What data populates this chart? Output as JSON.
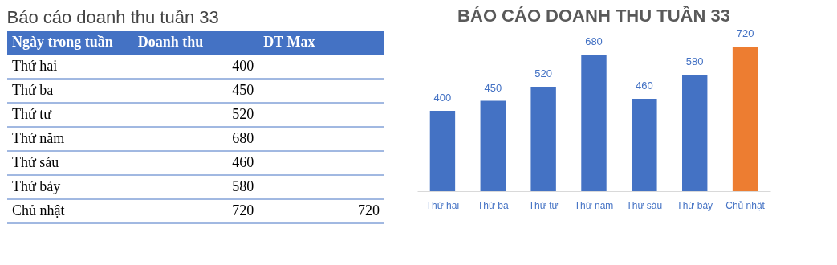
{
  "chart_data": [
    {
      "type": "other",
      "title": "Báo cáo doanh thu tuần 33",
      "annotations": [
        "Ngày trong tuần",
        "Doanh thu",
        "DT Max",
        "Thứ hai",
        "400",
        "Thứ ba",
        "450",
        "Thứ tư",
        "520",
        "Thứ năm",
        "680",
        "Thứ sáu",
        "460",
        "Thứ bảy",
        "580",
        "Chủ nhật",
        "720",
        "720"
      ]
    },
    {
      "type": "bar",
      "title": "BÁO CÁO DOANH THU TUẦN 33",
      "categories": [
        "Thứ hai",
        "Thứ ba",
        "Thứ tư",
        "Thứ năm",
        "Thứ sáu",
        "Thứ bảy",
        "Chủ nhật"
      ],
      "values": [
        400,
        450,
        520,
        680,
        460,
        580,
        720
      ],
      "colors": [
        "#4472c4",
        "#4472c4",
        "#4472c4",
        "#4472c4",
        "#4472c4",
        "#4472c4",
        "#ed7d31"
      ],
      "data_labels": true,
      "grid": false
    }
  ]
}
